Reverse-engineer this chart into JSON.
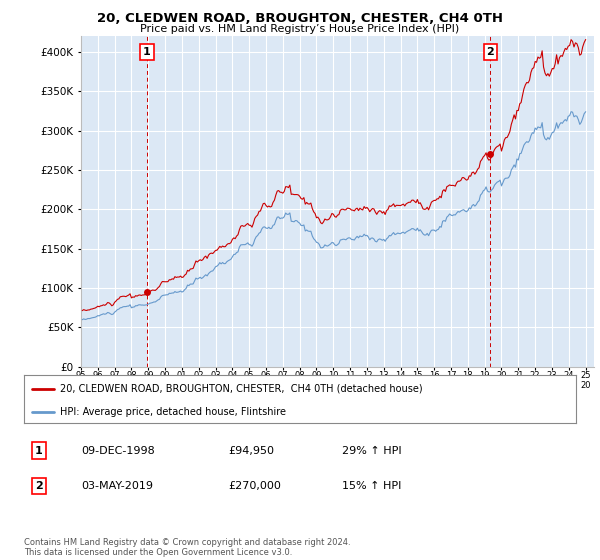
{
  "title": "20, CLEDWEN ROAD, BROUGHTON, CHESTER, CH4 0TH",
  "subtitle": "Price paid vs. HM Land Registry’s House Price Index (HPI)",
  "legend_line1": "20, CLEDWEN ROAD, BROUGHTON, CHESTER,  CH4 0TH (detached house)",
  "legend_line2": "HPI: Average price, detached house, Flintshire",
  "annotation1_label": "1",
  "annotation1_date": "09-DEC-1998",
  "annotation1_price": "£94,950",
  "annotation1_hpi": "29% ↑ HPI",
  "annotation1_year": 1998.92,
  "annotation1_value": 94950,
  "annotation2_label": "2",
  "annotation2_date": "03-MAY-2019",
  "annotation2_price": "£270,000",
  "annotation2_hpi": "15% ↑ HPI",
  "annotation2_year": 2019.34,
  "annotation2_value": 270000,
  "footer": "Contains HM Land Registry data © Crown copyright and database right 2024.\nThis data is licensed under the Open Government Licence v3.0.",
  "red_color": "#cc0000",
  "blue_color": "#6699cc",
  "plot_bg_color": "#dce8f5",
  "background_color": "#ffffff",
  "grid_color": "#ffffff",
  "ylim_max": 420000,
  "xlim_min": 1995.08,
  "xlim_max": 2025.5
}
